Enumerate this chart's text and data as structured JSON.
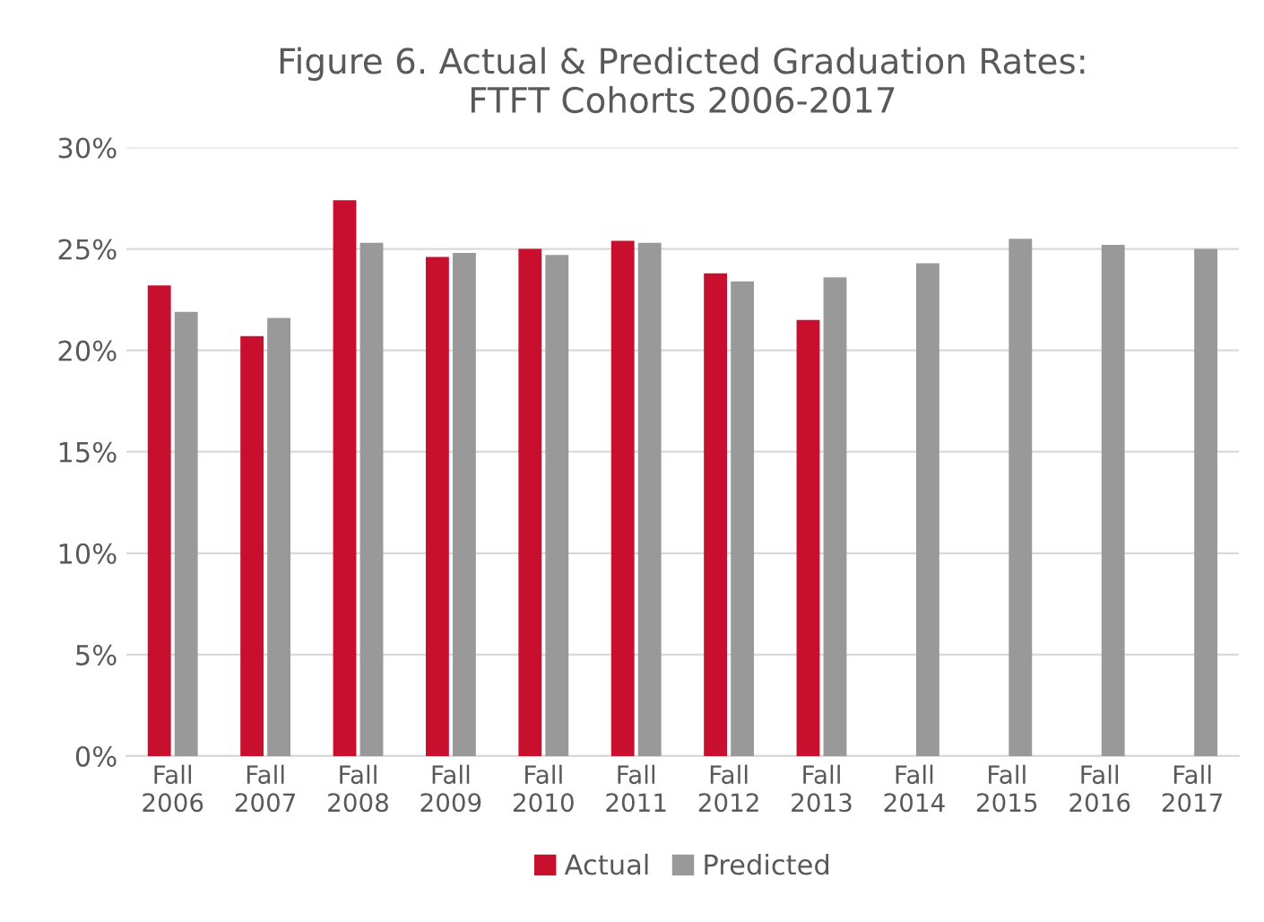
{
  "chart_data": {
    "type": "bar",
    "title": "Figure 6. Actual & Predicted Graduation Rates:\nFTFT Cohorts 2006-2017",
    "categories": [
      "Fall\n2006",
      "Fall\n2007",
      "Fall\n2008",
      "Fall\n2009",
      "Fall\n2010",
      "Fall\n2011",
      "Fall\n2012",
      "Fall\n2013",
      "Fall\n2014",
      "Fall\n2015",
      "Fall\n2016",
      "Fall\n2017"
    ],
    "series": [
      {
        "name": "Actual",
        "color": "#c8102e",
        "values": [
          23.2,
          20.7,
          27.4,
          24.6,
          25.0,
          25.4,
          23.8,
          21.5,
          null,
          null,
          null,
          null
        ]
      },
      {
        "name": "Predicted",
        "color": "#999999",
        "values": [
          21.9,
          21.6,
          25.3,
          24.8,
          24.7,
          25.3,
          23.4,
          23.6,
          24.3,
          25.5,
          25.2,
          25.0
        ]
      }
    ],
    "ylim": [
      0,
      30
    ],
    "yticks": [
      {
        "value": 0,
        "label": "0%"
      },
      {
        "value": 5,
        "label": "5%"
      },
      {
        "value": 10,
        "label": "10%"
      },
      {
        "value": 15,
        "label": "15%"
      },
      {
        "value": 20,
        "label": "20%"
      },
      {
        "value": 25,
        "label": "25%"
      },
      {
        "value": 30,
        "label": "30%"
      }
    ],
    "grid": "y",
    "legend": "bottom"
  }
}
